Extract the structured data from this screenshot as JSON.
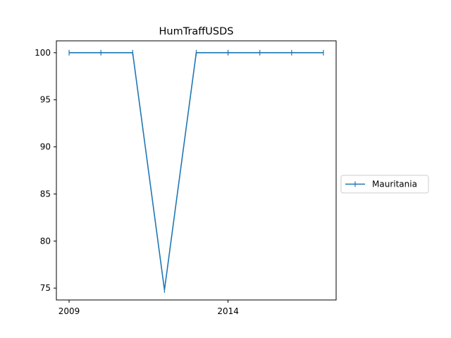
{
  "chart_data": {
    "type": "line",
    "title": "HumTraffUSDS",
    "xlabel": "",
    "ylabel": "",
    "x": [
      2009,
      2010,
      2011,
      2012,
      2013,
      2014,
      2015,
      2016,
      2017
    ],
    "series": [
      {
        "name": "Mauritania",
        "values": [
          100,
          100,
          100,
          74.8,
          100,
          100,
          100,
          100,
          100
        ],
        "color": "#1f77b4",
        "marker": "|"
      }
    ],
    "xlim": [
      2008.6,
      2017.4
    ],
    "ylim": [
      73.74,
      101.26
    ],
    "xticks": [
      2009,
      2014
    ],
    "yticks": [
      75,
      80,
      85,
      90,
      95,
      100
    ],
    "grid": false,
    "legend_position": "right"
  }
}
